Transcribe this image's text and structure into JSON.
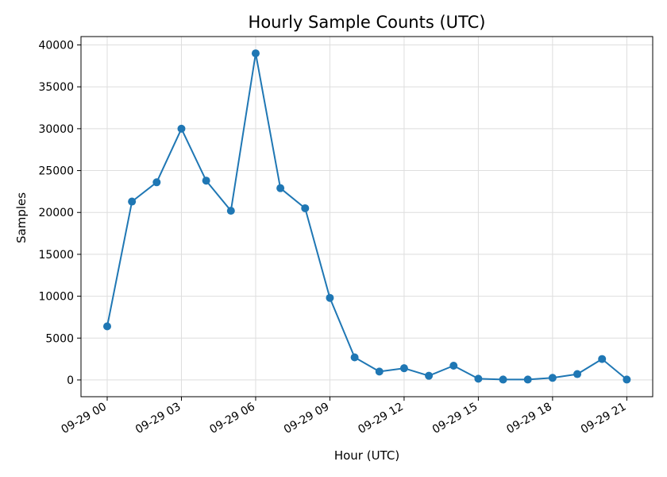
{
  "chart_data": {
    "type": "line",
    "title": "Hourly Sample Counts (UTC)",
    "xlabel": "Hour (UTC)",
    "ylabel": "Samples",
    "x": [
      "09-29 00",
      "09-29 01",
      "09-29 02",
      "09-29 03",
      "09-29 04",
      "09-29 05",
      "09-29 06",
      "09-29 07",
      "09-29 08",
      "09-29 09",
      "09-29 10",
      "09-29 11",
      "09-29 12",
      "09-29 13",
      "09-29 14",
      "09-29 15",
      "09-29 16",
      "09-29 17",
      "09-29 18",
      "09-29 19",
      "09-29 20",
      "09-29 21"
    ],
    "series": [
      {
        "values": [
          6400,
          21300,
          23600,
          30000,
          23800,
          20200,
          39000,
          22900,
          20500,
          9800,
          2700,
          1000,
          1400,
          500,
          1700,
          150,
          50,
          50,
          250,
          700,
          2500,
          50
        ]
      }
    ],
    "ylim": [
      -2000,
      41000
    ],
    "y_ticks": [
      0,
      5000,
      10000,
      15000,
      20000,
      25000,
      30000,
      35000,
      40000
    ],
    "x_ticks": [
      "09-29 00",
      "09-29 03",
      "09-29 06",
      "09-29 09",
      "09-29 12",
      "09-29 15",
      "09-29 18",
      "09-29 21"
    ],
    "grid": true,
    "line_color": "#1f77b4"
  }
}
